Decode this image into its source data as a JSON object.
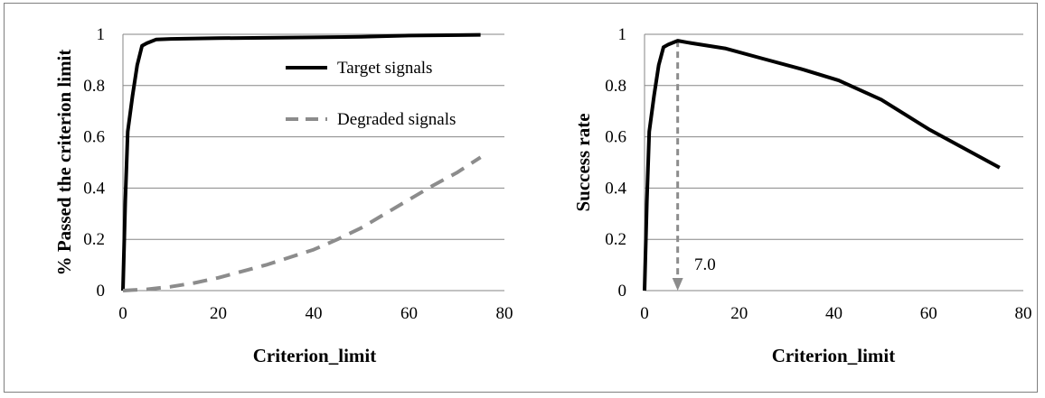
{
  "chart_data": [
    {
      "type": "line",
      "title": "",
      "xlabel": "Criterion_limit",
      "ylabel": "% Passed the criterion limit",
      "xlim": [
        0,
        80
      ],
      "ylim": [
        0,
        1
      ],
      "xticks": [
        "0",
        "20",
        "40",
        "60",
        "80"
      ],
      "yticks": [
        "0",
        "0.2",
        "0.4",
        "0.6",
        "0.8",
        "1"
      ],
      "grid": "horizontal",
      "legend_position": "top-right",
      "series": [
        {
          "name": "Target signals",
          "color": "#000000",
          "style": "solid",
          "x": [
            0,
            0.5,
            1,
            2,
            3,
            4,
            5,
            7,
            10,
            20,
            40,
            50,
            60,
            75
          ],
          "y": [
            0,
            0.35,
            0.62,
            0.76,
            0.88,
            0.955,
            0.965,
            0.98,
            0.982,
            0.985,
            0.988,
            0.99,
            0.995,
            0.998
          ]
        },
        {
          "name": "Degraded signals",
          "color": "#8c8c8c",
          "style": "dashed",
          "x": [
            0,
            2,
            5,
            10,
            15,
            20,
            25,
            30,
            35,
            40,
            45,
            50,
            55,
            60,
            65,
            70,
            75
          ],
          "y": [
            0,
            0.002,
            0.005,
            0.015,
            0.03,
            0.05,
            0.075,
            0.1,
            0.13,
            0.16,
            0.2,
            0.245,
            0.3,
            0.355,
            0.41,
            0.46,
            0.52
          ]
        }
      ]
    },
    {
      "type": "line",
      "title": "",
      "xlabel": "Criterion_limit",
      "ylabel": "Success rate",
      "xlim": [
        0,
        80
      ],
      "ylim": [
        0,
        1
      ],
      "xticks": [
        "0",
        "20",
        "40",
        "60",
        "80"
      ],
      "yticks": [
        "0",
        "0.2",
        "0.4",
        "0.6",
        "0.8",
        "1"
      ],
      "grid": "horizontal",
      "legend_position": "none",
      "series": [
        {
          "color": "#000000",
          "style": "solid",
          "x": [
            0,
            0.5,
            1,
            2,
            3,
            4,
            5,
            7,
            10,
            17,
            25,
            33,
            41,
            50,
            60,
            75
          ],
          "y": [
            0,
            0.35,
            0.62,
            0.76,
            0.88,
            0.95,
            0.96,
            0.975,
            0.965,
            0.945,
            0.905,
            0.865,
            0.82,
            0.745,
            0.63,
            0.48
          ]
        }
      ],
      "annotation": {
        "label": "7.0",
        "x": 7,
        "y_from": 0.975,
        "color": "#8c8c8c",
        "style": "dashed arrow"
      }
    }
  ]
}
